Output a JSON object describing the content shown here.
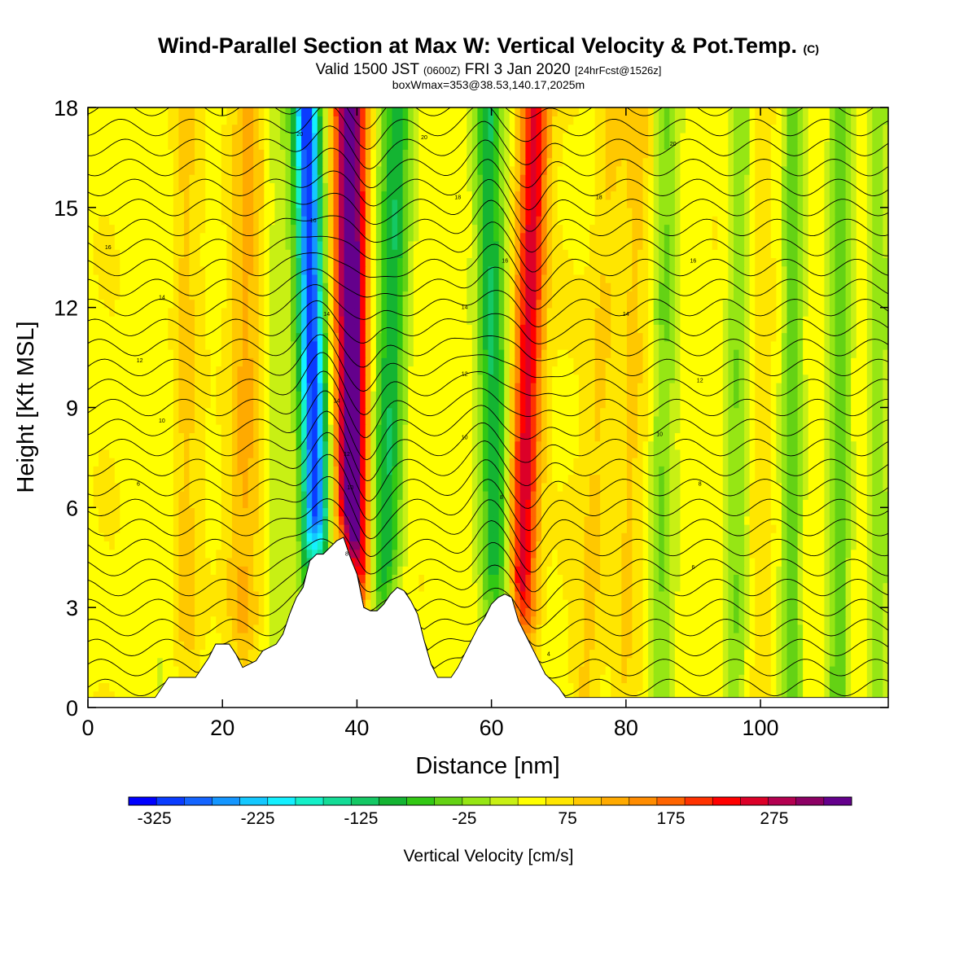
{
  "titles": {
    "main": "Wind-Parallel Section at Max W: Vertical Velocity & Pot.Temp.",
    "main_suffix": "(C)",
    "valid_a": "Valid 1500 JST",
    "valid_b": "(0600Z)",
    "valid_c": "FRI 3 Jan 2020",
    "valid_d": "[24hrFcst@1526z]",
    "box": "boxWmax=353@38.53,140.17,2025m"
  },
  "chart_data": {
    "type": "heatmap",
    "xlabel": "Distance [nm]",
    "ylabel": "Height [Kft MSL]",
    "xlim": [
      0,
      119
    ],
    "ylim": [
      0,
      18
    ],
    "x_ticks": [
      0,
      20,
      40,
      60,
      80,
      100
    ],
    "y_ticks": [
      0,
      3,
      6,
      9,
      12,
      15,
      18
    ],
    "colorbar": {
      "label": "Vertical Velocity [cm/s]",
      "min": -350,
      "max": 350,
      "step": 25,
      "tick_values": [
        -325,
        -225,
        -125,
        -25,
        75,
        175,
        275
      ],
      "colors": [
        "#0000ff",
        "#0a3cff",
        "#1464ff",
        "#1496ff",
        "#14c8ff",
        "#14f0ff",
        "#14f0c8",
        "#14dc96",
        "#14c864",
        "#14b432",
        "#32c814",
        "#64d214",
        "#96e614",
        "#c8f014",
        "#ffff00",
        "#ffe600",
        "#ffc800",
        "#ffaa00",
        "#ff8c00",
        "#ff6400",
        "#ff3200",
        "#ff0000",
        "#dc0028",
        "#b40050",
        "#8c0064",
        "#64008c"
      ]
    },
    "updraft_bands": [
      {
        "x_base": 39.5,
        "x_top": 39.0,
        "peak_cm_s": 310,
        "sigma_nm": 1.6
      },
      {
        "x_base": 64.0,
        "x_top": 66.5,
        "peak_cm_s": 200,
        "sigma_nm": 1.5
      },
      {
        "x_base": 22.5,
        "x_top": 24.0,
        "peak_cm_s": 60,
        "sigma_nm": 2.0
      },
      {
        "x_base": 14.0,
        "x_top": 13.5,
        "peak_cm_s": 45,
        "sigma_nm": 2.0
      },
      {
        "x_base": 74.0,
        "x_top": 78.0,
        "peak_cm_s": 40,
        "sigma_nm": 1.5
      },
      {
        "x_base": 79.5,
        "x_top": 82.0,
        "peak_cm_s": 35,
        "sigma_nm": 1.5
      },
      {
        "x_base": 100.0,
        "x_top": 100.0,
        "peak_cm_s": 30,
        "sigma_nm": 1.5
      }
    ],
    "downdraft_bands": [
      {
        "x_base": 34.5,
        "x_top": 32.5,
        "peak_cm_s": -330,
        "sigma_nm": 1.4
      },
      {
        "x_base": 43.5,
        "x_top": 46.0,
        "peak_cm_s": -140,
        "sigma_nm": 1.7
      },
      {
        "x_base": 61.0,
        "x_top": 59.5,
        "peak_cm_s": -150,
        "sigma_nm": 1.5
      },
      {
        "x_base": 28.0,
        "x_top": 28.0,
        "peak_cm_s": -40,
        "sigma_nm": 1.5
      },
      {
        "x_base": 85.0,
        "x_top": 86.0,
        "peak_cm_s": -70,
        "sigma_nm": 1.3
      },
      {
        "x_base": 96.0,
        "x_top": 97.0,
        "peak_cm_s": -70,
        "sigma_nm": 1.3
      },
      {
        "x_base": 104.5,
        "x_top": 105.0,
        "peak_cm_s": -90,
        "sigma_nm": 1.2
      },
      {
        "x_base": 111.5,
        "x_top": 112.0,
        "peak_cm_s": -80,
        "sigma_nm": 1.2
      },
      {
        "x_base": 117.5,
        "x_top": 117.5,
        "peak_cm_s": -70,
        "sigma_nm": 1.2
      },
      {
        "x_base": 12.0,
        "x_top": 12.0,
        "peak_cm_s": -35,
        "sigma_nm": 1.5
      }
    ],
    "terrain_kft": [
      [
        0,
        0.3
      ],
      [
        10,
        0.3
      ],
      [
        11,
        0.6
      ],
      [
        12,
        0.9
      ],
      [
        16,
        0.9
      ],
      [
        18,
        1.5
      ],
      [
        19,
        1.9
      ],
      [
        21,
        1.9
      ],
      [
        22,
        1.6
      ],
      [
        23,
        1.2
      ],
      [
        25,
        1.4
      ],
      [
        26,
        1.7
      ],
      [
        28,
        1.9
      ],
      [
        29,
        2.2
      ],
      [
        30,
        2.8
      ],
      [
        31,
        3.3
      ],
      [
        32,
        3.6
      ],
      [
        33,
        4.4
      ],
      [
        34,
        4.6
      ],
      [
        35,
        4.6
      ],
      [
        36,
        4.8
      ],
      [
        37,
        5.0
      ],
      [
        38,
        5.1
      ],
      [
        39,
        4.5
      ],
      [
        40,
        4.0
      ],
      [
        41,
        3.0
      ],
      [
        42,
        2.9
      ],
      [
        43,
        2.9
      ],
      [
        44,
        3.1
      ],
      [
        45,
        3.4
      ],
      [
        46,
        3.6
      ],
      [
        47,
        3.5
      ],
      [
        48,
        3.2
      ],
      [
        49,
        2.8
      ],
      [
        50,
        2.0
      ],
      [
        51,
        1.3
      ],
      [
        52,
        0.9
      ],
      [
        53,
        0.9
      ],
      [
        54,
        0.9
      ],
      [
        55,
        1.2
      ],
      [
        56,
        1.6
      ],
      [
        57,
        2.0
      ],
      [
        58,
        2.4
      ],
      [
        59,
        2.7
      ],
      [
        60,
        3.1
      ],
      [
        61,
        3.3
      ],
      [
        62,
        3.4
      ],
      [
        63,
        3.3
      ],
      [
        64,
        2.6
      ],
      [
        65,
        2.2
      ],
      [
        66,
        1.8
      ],
      [
        67,
        1.4
      ],
      [
        68,
        1.0
      ],
      [
        69,
        0.8
      ],
      [
        70,
        0.6
      ],
      [
        71,
        0.3
      ],
      [
        119,
        0.3
      ]
    ],
    "theta_contours": {
      "count": 31,
      "labels": [
        {
          "x": 7.5,
          "y": 6.7,
          "text": "6"
        },
        {
          "x": 11,
          "y": 8.6,
          "text": "10"
        },
        {
          "x": 7.7,
          "y": 10.4,
          "text": "12"
        },
        {
          "x": 11,
          "y": 12.3,
          "text": "14"
        },
        {
          "x": 3,
          "y": 13.8,
          "text": "16"
        },
        {
          "x": 38.5,
          "y": 4.6,
          "text": "8"
        },
        {
          "x": 39,
          "y": 6.6,
          "text": "10"
        },
        {
          "x": 38.5,
          "y": 7.6,
          "text": "12"
        },
        {
          "x": 37,
          "y": 9.2,
          "text": "14"
        },
        {
          "x": 35.5,
          "y": 11.8,
          "text": "14"
        },
        {
          "x": 33.5,
          "y": 14.6,
          "text": "16"
        },
        {
          "x": 31.5,
          "y": 17.2,
          "text": "20"
        },
        {
          "x": 56,
          "y": 8.1,
          "text": "10"
        },
        {
          "x": 56,
          "y": 10.0,
          "text": "12"
        },
        {
          "x": 56,
          "y": 12.0,
          "text": "14"
        },
        {
          "x": 61.5,
          "y": 6.3,
          "text": "8"
        },
        {
          "x": 62,
          "y": 13.4,
          "text": "16"
        },
        {
          "x": 55,
          "y": 15.3,
          "text": "18"
        },
        {
          "x": 50,
          "y": 17.1,
          "text": "20"
        },
        {
          "x": 85,
          "y": 8.2,
          "text": "10"
        },
        {
          "x": 91,
          "y": 9.8,
          "text": "12"
        },
        {
          "x": 80,
          "y": 11.8,
          "text": "14"
        },
        {
          "x": 90,
          "y": 13.4,
          "text": "16"
        },
        {
          "x": 76,
          "y": 15.3,
          "text": "18"
        },
        {
          "x": 87,
          "y": 16.9,
          "text": "20"
        },
        {
          "x": 91,
          "y": 6.7,
          "text": "8"
        },
        {
          "x": 90,
          "y": 4.2,
          "text": "6"
        },
        {
          "x": 68.5,
          "y": 1.6,
          "text": "4"
        }
      ]
    }
  }
}
